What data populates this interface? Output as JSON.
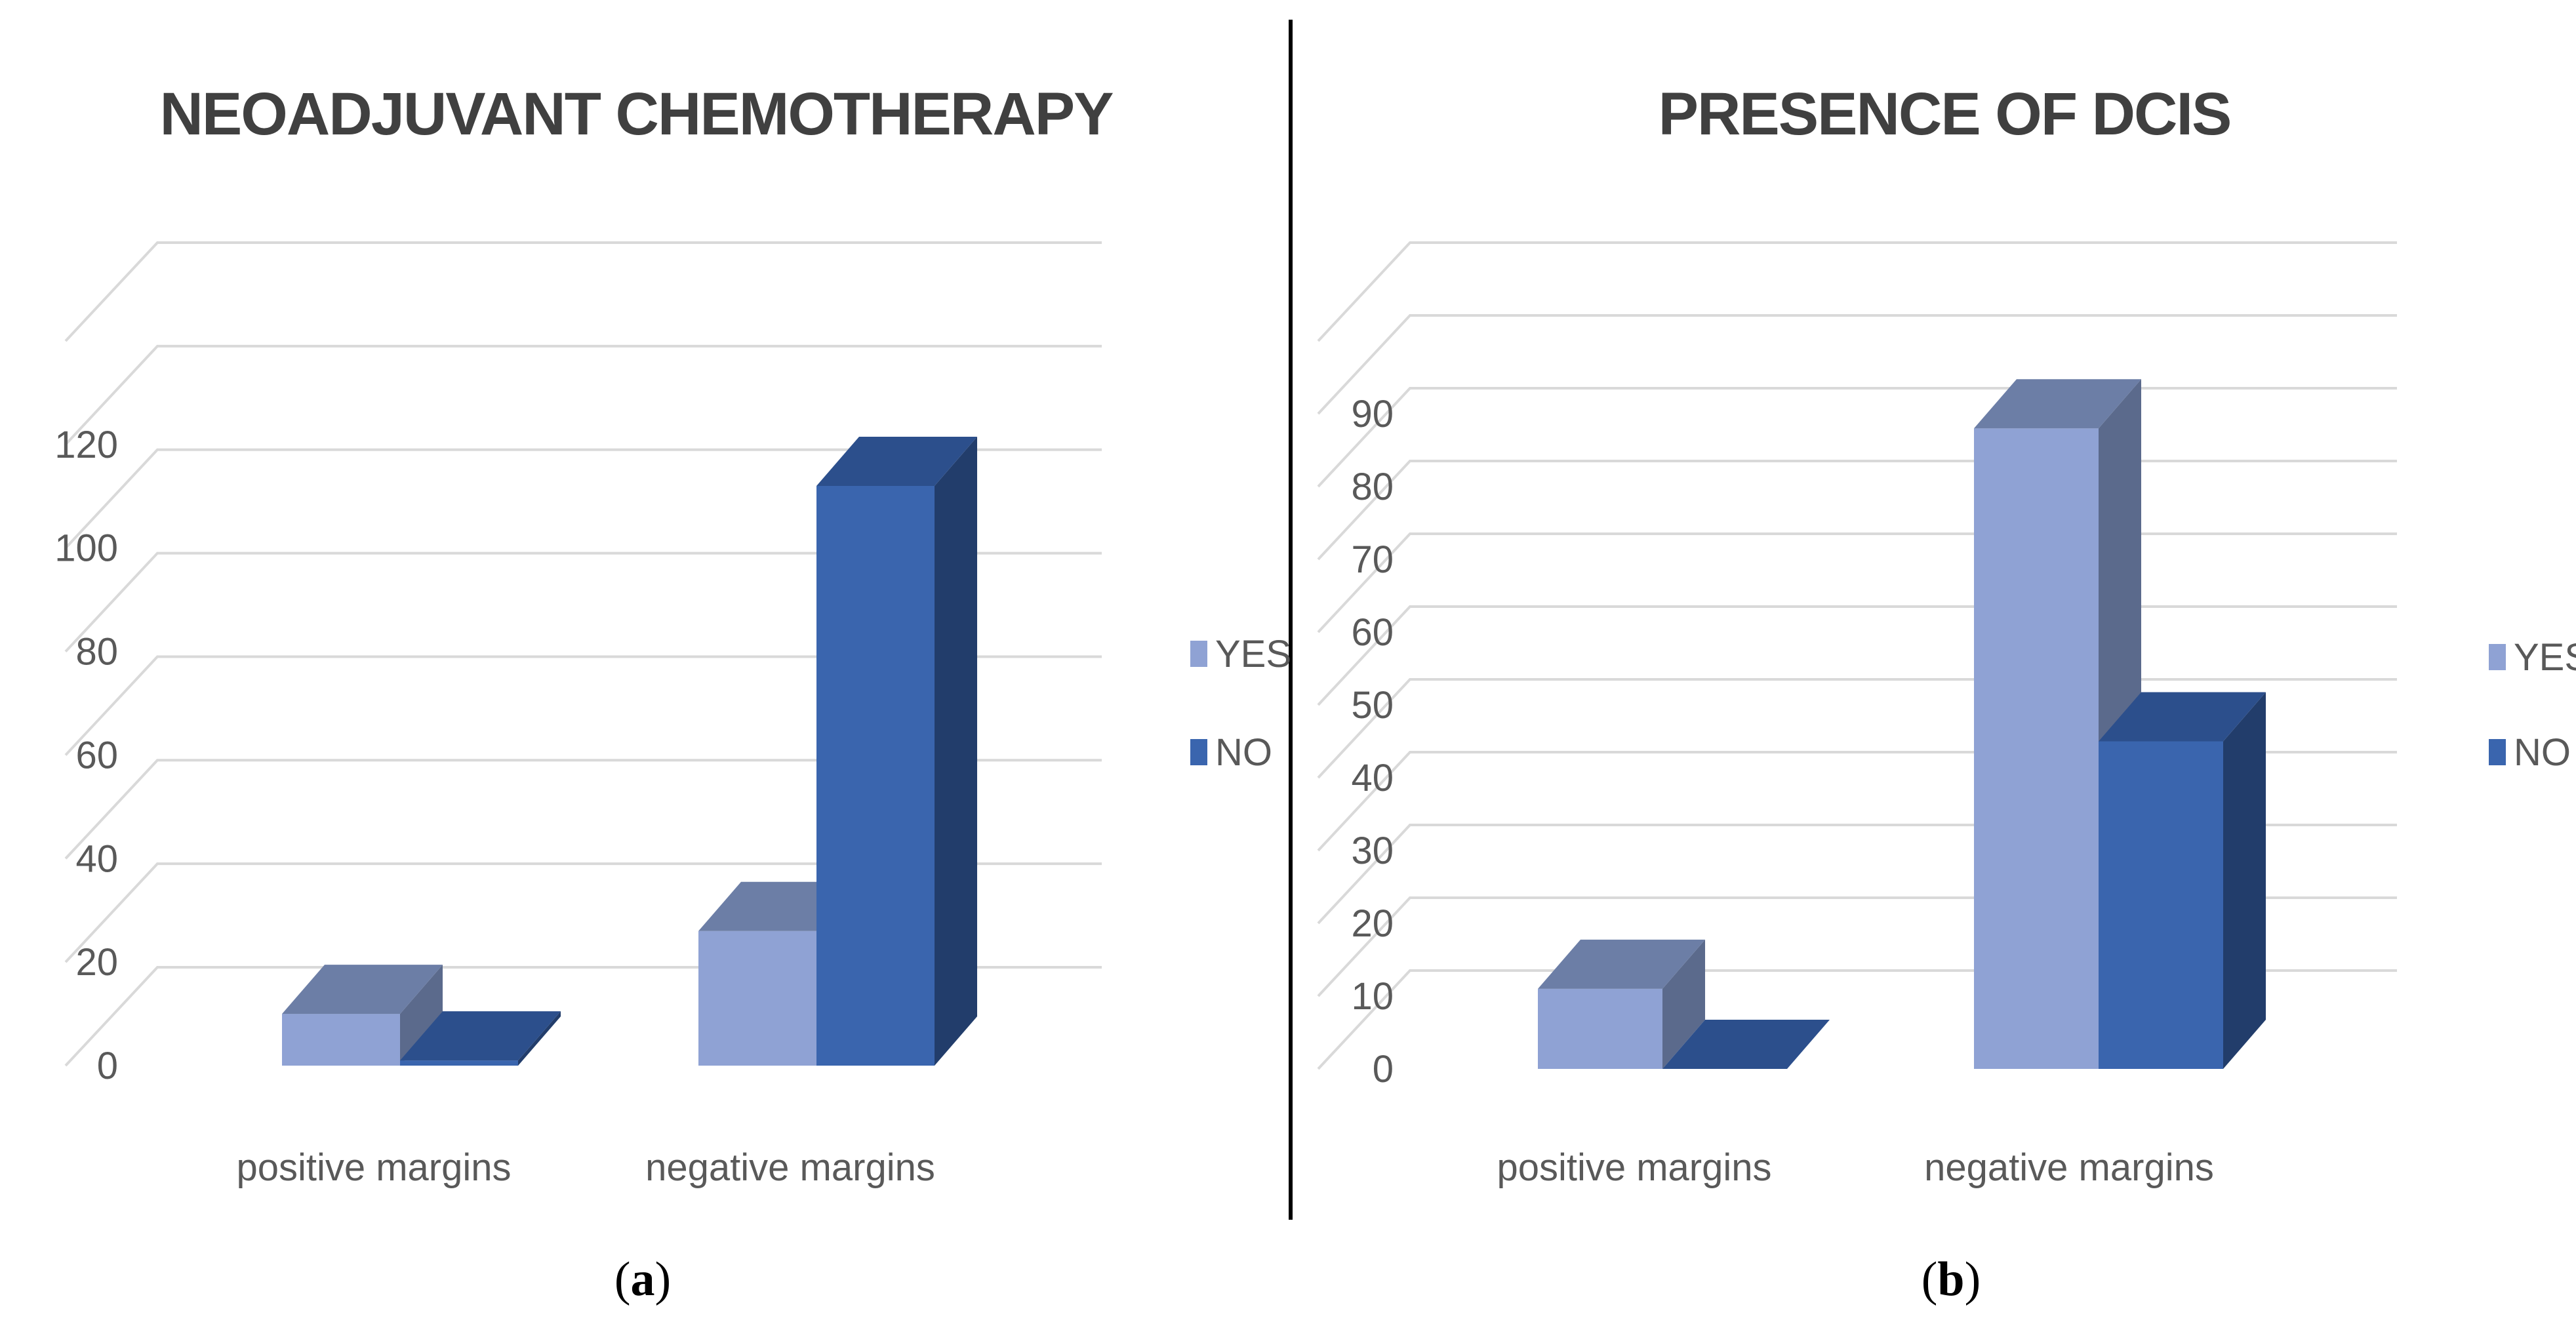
{
  "figure": {
    "divider_color": "#000000",
    "panels": [
      {
        "caption_letter": "a",
        "caption_open": "(",
        "caption_close": ")"
      },
      {
        "caption_letter": "b",
        "caption_open": "(",
        "caption_close": ")"
      }
    ]
  },
  "colors": {
    "yes_front": "#8FA2D4",
    "yes_top": "#6C7EA6",
    "yes_side": "#5B6A8C",
    "no_front": "#3A65AE",
    "no_top": "#2C4F8C",
    "no_side": "#223D6B",
    "grid": "#D9D9D9",
    "text": "#595959",
    "title": "#404040"
  },
  "chart_data": [
    {
      "type": "bar",
      "title": "NEOADJUVANT CHEMOTHERAPY",
      "categories": [
        "positive margins",
        "negative margins"
      ],
      "series": [
        {
          "name": "YES",
          "values": [
            10,
            26
          ]
        },
        {
          "name": "NO",
          "values": [
            1,
            112
          ]
        }
      ],
      "ylim": [
        0,
        140
      ],
      "yticks": [
        0,
        20,
        40,
        60,
        80,
        100,
        120
      ],
      "xlabel": "",
      "ylabel": "",
      "grid": true,
      "legend": "right",
      "legend_labels": [
        "YES",
        "NO"
      ]
    },
    {
      "type": "bar",
      "title": "PRESENCE OF DCIS",
      "categories": [
        "positive margins",
        "negative margins"
      ],
      "series": [
        {
          "name": "YES",
          "values": [
            11,
            88
          ]
        },
        {
          "name": "NO",
          "values": [
            0,
            45
          ]
        }
      ],
      "ylim": [
        0,
        100
      ],
      "yticks": [
        0,
        10,
        20,
        30,
        40,
        50,
        60,
        70,
        80,
        90
      ],
      "xlabel": "",
      "ylabel": "",
      "grid": true,
      "legend": "right",
      "legend_labels": [
        "YES",
        "NO"
      ]
    }
  ]
}
